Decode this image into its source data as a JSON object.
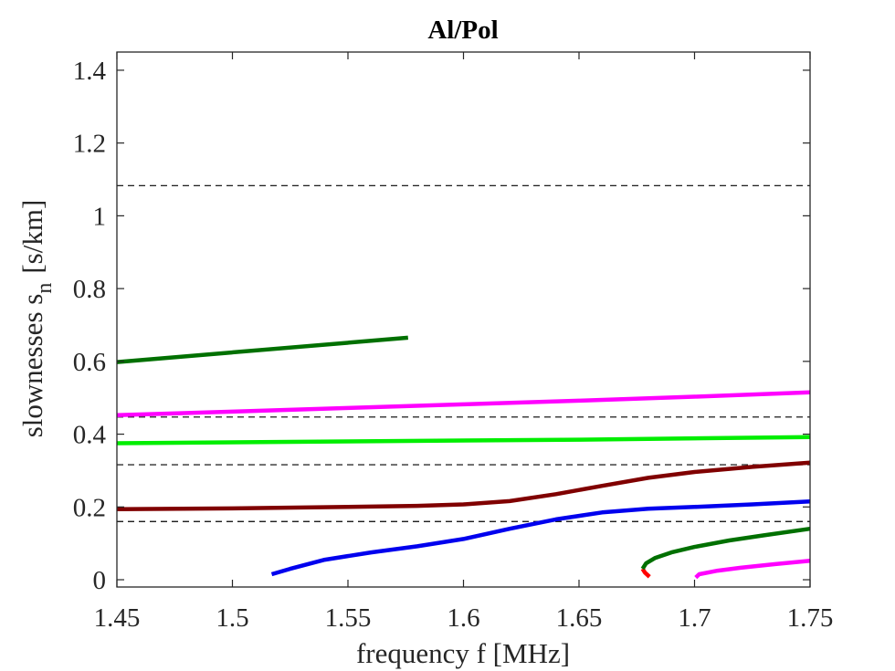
{
  "chart_data": {
    "type": "line",
    "title": "Al/Pol",
    "xlabel": "frequency f [MHz]",
    "ylabel_main": "slownesses s",
    "ylabel_sub": "n",
    "ylabel_unit": "[s/km]",
    "xlim": [
      1.45,
      1.75
    ],
    "ylim": [
      -0.02,
      1.45
    ],
    "xticks": [
      1.45,
      1.5,
      1.55,
      1.6,
      1.65,
      1.7,
      1.75
    ],
    "xtick_labels": [
      "1.45",
      "1.5",
      "1.55",
      "1.6",
      "1.65",
      "1.7",
      "1.75"
    ],
    "yticks": [
      0,
      0.2,
      0.4,
      0.6,
      0.8,
      1,
      1.2,
      1.4
    ],
    "ytick_labels": [
      "0",
      "0.2",
      "0.4",
      "0.6",
      "0.8",
      "1",
      "1.2",
      "1.4"
    ],
    "grid": false,
    "reference_lines": [
      1.083,
      0.447,
      0.316,
      0.16
    ],
    "series": [
      {
        "color": "#007000",
        "x": [
          1.45,
          1.576
        ],
        "y": [
          0.598,
          0.665
        ]
      },
      {
        "color": "#ff00ff",
        "x": [
          1.45,
          1.5,
          1.55,
          1.6,
          1.65,
          1.7,
          1.75
        ],
        "y": [
          0.452,
          0.462,
          0.472,
          0.482,
          0.492,
          0.503,
          0.515
        ]
      },
      {
        "color": "#00ee00",
        "x": [
          1.45,
          1.55,
          1.65,
          1.75
        ],
        "y": [
          0.375,
          0.38,
          0.385,
          0.392
        ]
      },
      {
        "color": "#800000",
        "x": [
          1.45,
          1.5,
          1.55,
          1.58,
          1.6,
          1.62,
          1.64,
          1.66,
          1.68,
          1.7,
          1.725,
          1.75
        ],
        "y": [
          0.194,
          0.196,
          0.2,
          0.203,
          0.207,
          0.216,
          0.235,
          0.258,
          0.28,
          0.296,
          0.31,
          0.322
        ]
      },
      {
        "color": "#0000ee",
        "x": [
          1.517,
          1.525,
          1.54,
          1.56,
          1.58,
          1.6,
          1.62,
          1.64,
          1.66,
          1.68,
          1.7,
          1.725,
          1.75
        ],
        "y": [
          0.015,
          0.03,
          0.055,
          0.075,
          0.092,
          0.112,
          0.14,
          0.166,
          0.185,
          0.195,
          0.2,
          0.207,
          0.215
        ]
      },
      {
        "color": "#ff0000",
        "x": [
          1.6805,
          1.6785,
          1.6775
        ],
        "y": [
          0.008,
          0.02,
          0.03
        ]
      },
      {
        "color": "#007000",
        "x": [
          1.6775,
          1.679,
          1.683,
          1.69,
          1.7,
          1.715,
          1.73,
          1.75
        ],
        "y": [
          0.03,
          0.045,
          0.06,
          0.075,
          0.09,
          0.108,
          0.122,
          0.14
        ]
      },
      {
        "color": "#ff00ff",
        "x": [
          1.7005,
          1.702,
          1.71,
          1.72,
          1.735,
          1.75
        ],
        "y": [
          0.006,
          0.015,
          0.025,
          0.033,
          0.043,
          0.052
        ]
      }
    ]
  }
}
